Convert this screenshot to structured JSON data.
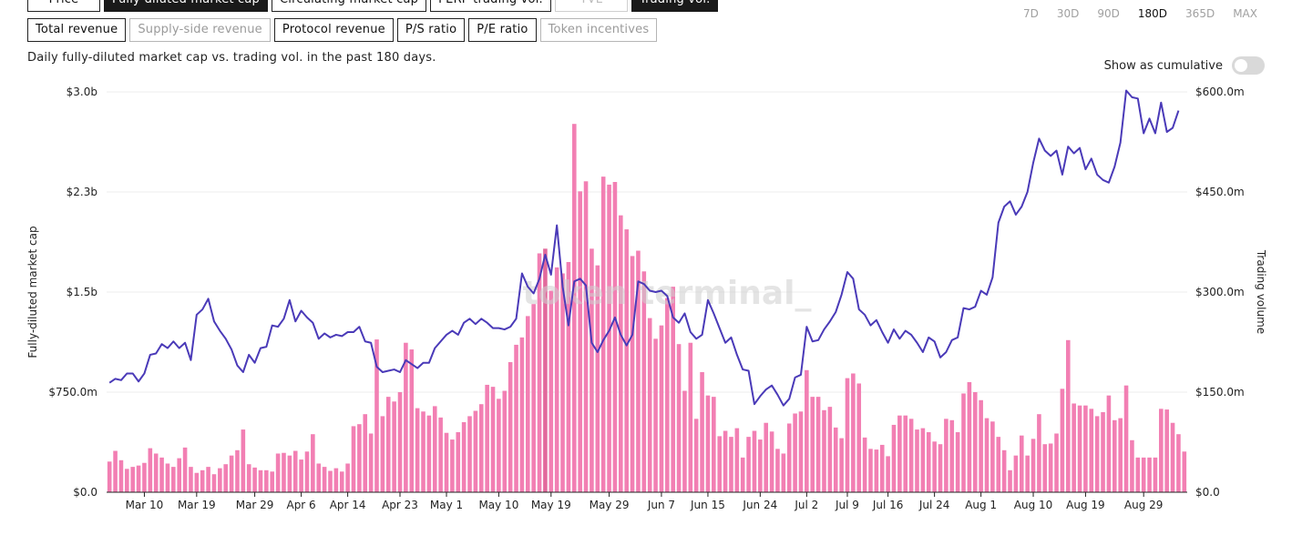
{
  "metrics_row1": [
    {
      "label": "Price",
      "state": "normal"
    },
    {
      "label": "Fully-diluted market cap",
      "state": "active"
    },
    {
      "label": "Circulating market cap",
      "state": "normal"
    },
    {
      "label": "PERP trading vol.",
      "state": "normal"
    },
    {
      "label": "TVL",
      "state": "disabled"
    },
    {
      "label": "Trading vol.",
      "state": "active"
    }
  ],
  "metrics_row2": [
    {
      "label": "Total revenue",
      "state": "normal"
    },
    {
      "label": "Supply-side revenue",
      "state": "disabled"
    },
    {
      "label": "Protocol revenue",
      "state": "normal"
    },
    {
      "label": "P/S ratio",
      "state": "normal"
    },
    {
      "label": "P/E ratio",
      "state": "normal"
    },
    {
      "label": "Token incentives",
      "state": "disabled"
    }
  ],
  "time_ranges": [
    "7D",
    "30D",
    "90D",
    "180D",
    "365D",
    "MAX"
  ],
  "active_range": "180D",
  "description": "Daily fully-diluted market cap vs. trading vol. in the past 180 days.",
  "cumulative_label": "Show as cumulative",
  "cumulative_on": false,
  "watermark": "token terminal_",
  "colors": {
    "line": "#4a3ab8",
    "bar": "#f27fb3",
    "bar_highlight": "#e2699c"
  },
  "chart_data": {
    "type": "bar+line",
    "left_axis_label": "Fully-diluted market cap",
    "right_axis_label": "Trading volume",
    "left_ticks": [
      "$0.0",
      "$750.0m",
      "$1.5b",
      "$2.3b",
      "$3.0b"
    ],
    "right_ticks": [
      "$0.0",
      "$150.0m",
      "$300.0m",
      "$450.0m",
      "$600.0m"
    ],
    "left_range": [
      0,
      3000
    ],
    "right_range": [
      0,
      600
    ],
    "x_ticks": [
      {
        "label": "Mar 10",
        "day": 6
      },
      {
        "label": "Mar 19",
        "day": 15
      },
      {
        "label": "Mar 29",
        "day": 25
      },
      {
        "label": "Apr 6",
        "day": 33
      },
      {
        "label": "Apr 14",
        "day": 41
      },
      {
        "label": "Apr 23",
        "day": 50
      },
      {
        "label": "May 1",
        "day": 58
      },
      {
        "label": "May 10",
        "day": 67
      },
      {
        "label": "May 19",
        "day": 76
      },
      {
        "label": "May 29",
        "day": 86
      },
      {
        "label": "Jun 7",
        "day": 95
      },
      {
        "label": "Jun 15",
        "day": 103
      },
      {
        "label": "Jun 24",
        "day": 112
      },
      {
        "label": "Jul 2",
        "day": 120
      },
      {
        "label": "Jul 9",
        "day": 127
      },
      {
        "label": "Jul 16",
        "day": 134
      },
      {
        "label": "Jul 24",
        "day": 142
      },
      {
        "label": "Aug 1",
        "day": 150
      },
      {
        "label": "Aug 10",
        "day": 159
      },
      {
        "label": "Aug 19",
        "day": 168
      },
      {
        "label": "Aug 29",
        "day": 178
      }
    ],
    "series": [
      {
        "name": "Fully-diluted market cap",
        "axis": "left",
        "kind": "line",
        "unit": "$m",
        "values": [
          820,
          850,
          840,
          890,
          890,
          830,
          890,
          1030,
          1040,
          1110,
          1080,
          1130,
          1080,
          1120,
          990,
          1330,
          1370,
          1450,
          1280,
          1210,
          1150,
          1070,
          950,
          900,
          1030,
          970,
          1080,
          1090,
          1250,
          1240,
          1300,
          1440,
          1280,
          1360,
          1310,
          1270,
          1150,
          1190,
          1160,
          1180,
          1170,
          1200,
          1200,
          1240,
          1130,
          1120,
          940,
          900,
          910,
          920,
          900,
          990,
          960,
          930,
          970,
          970,
          1080,
          1130,
          1180,
          1210,
          1180,
          1270,
          1300,
          1260,
          1300,
          1270,
          1230,
          1230,
          1220,
          1240,
          1300,
          1640,
          1540,
          1490,
          1600,
          1780,
          1630,
          2000,
          1540,
          1250,
          1580,
          1600,
          1550,
          1120,
          1050,
          1140,
          1210,
          1310,
          1180,
          1100,
          1180,
          1580,
          1560,
          1510,
          1500,
          1510,
          1470,
          1310,
          1270,
          1340,
          1200,
          1150,
          1180,
          1440,
          1340,
          1230,
          1120,
          1160,
          1030,
          920,
          910,
          660,
          720,
          770,
          800,
          730,
          650,
          700,
          860,
          880,
          1240,
          1130,
          1140,
          1220,
          1280,
          1350,
          1480,
          1650,
          1600,
          1370,
          1330,
          1250,
          1290,
          1200,
          1120,
          1220,
          1150,
          1210,
          1180,
          1120,
          1050,
          1160,
          1130,
          1010,
          1050,
          1140,
          1160,
          1380,
          1370,
          1390,
          1510,
          1480,
          1610,
          2020,
          2140,
          2180,
          2080,
          2140,
          2250,
          2470,
          2650,
          2560,
          2520,
          2560,
          2380,
          2590,
          2540,
          2580,
          2420,
          2500,
          2380,
          2340,
          2320,
          2440,
          2620,
          3010,
          2960,
          2950,
          2690,
          2800,
          2690,
          2920,
          2700,
          2730,
          2860
        ]
      },
      {
        "name": "Trading volume",
        "axis": "right",
        "kind": "bar",
        "unit": "$m",
        "values": [
          46,
          62,
          48,
          35,
          38,
          40,
          44,
          66,
          58,
          52,
          43,
          38,
          51,
          67,
          38,
          29,
          33,
          38,
          27,
          36,
          42,
          55,
          63,
          94,
          42,
          37,
          33,
          33,
          31,
          58,
          59,
          55,
          62,
          49,
          61,
          87,
          43,
          38,
          32,
          36,
          31,
          43,
          99,
          102,
          117,
          88,
          229,
          114,
          143,
          136,
          150,
          224,
          214,
          126,
          121,
          115,
          129,
          112,
          89,
          79,
          90,
          105,
          114,
          122,
          132,
          161,
          158,
          140,
          152,
          195,
          221,
          232,
          264,
          282,
          358,
          365,
          302,
          337,
          328,
          345,
          552,
          451,
          466,
          365,
          340,
          473,
          461,
          465,
          415,
          394,
          354,
          362,
          331,
          261,
          230,
          250,
          291,
          308,
          222,
          152,
          224,
          110,
          180,
          145,
          143,
          84,
          92,
          83,
          96,
          52,
          83,
          92,
          79,
          104,
          91,
          65,
          58,
          103,
          118,
          121,
          183,
          143,
          143,
          123,
          128,
          97,
          81,
          171,
          178,
          163,
          82,
          65,
          64,
          71,
          54,
          101,
          115,
          115,
          110,
          94,
          96,
          90,
          76,
          72,
          110,
          108,
          90,
          148,
          165,
          150,
          138,
          111,
          106,
          83,
          63,
          33,
          55,
          85,
          55,
          80,
          117,
          72,
          73,
          88,
          155,
          228,
          133,
          130,
          130,
          125,
          114,
          120,
          145,
          108,
          111,
          160,
          78,
          52,
          52,
          52,
          52,
          125,
          124,
          104,
          87,
          61
        ]
      }
    ],
    "highlight_bar_index": 75
  }
}
